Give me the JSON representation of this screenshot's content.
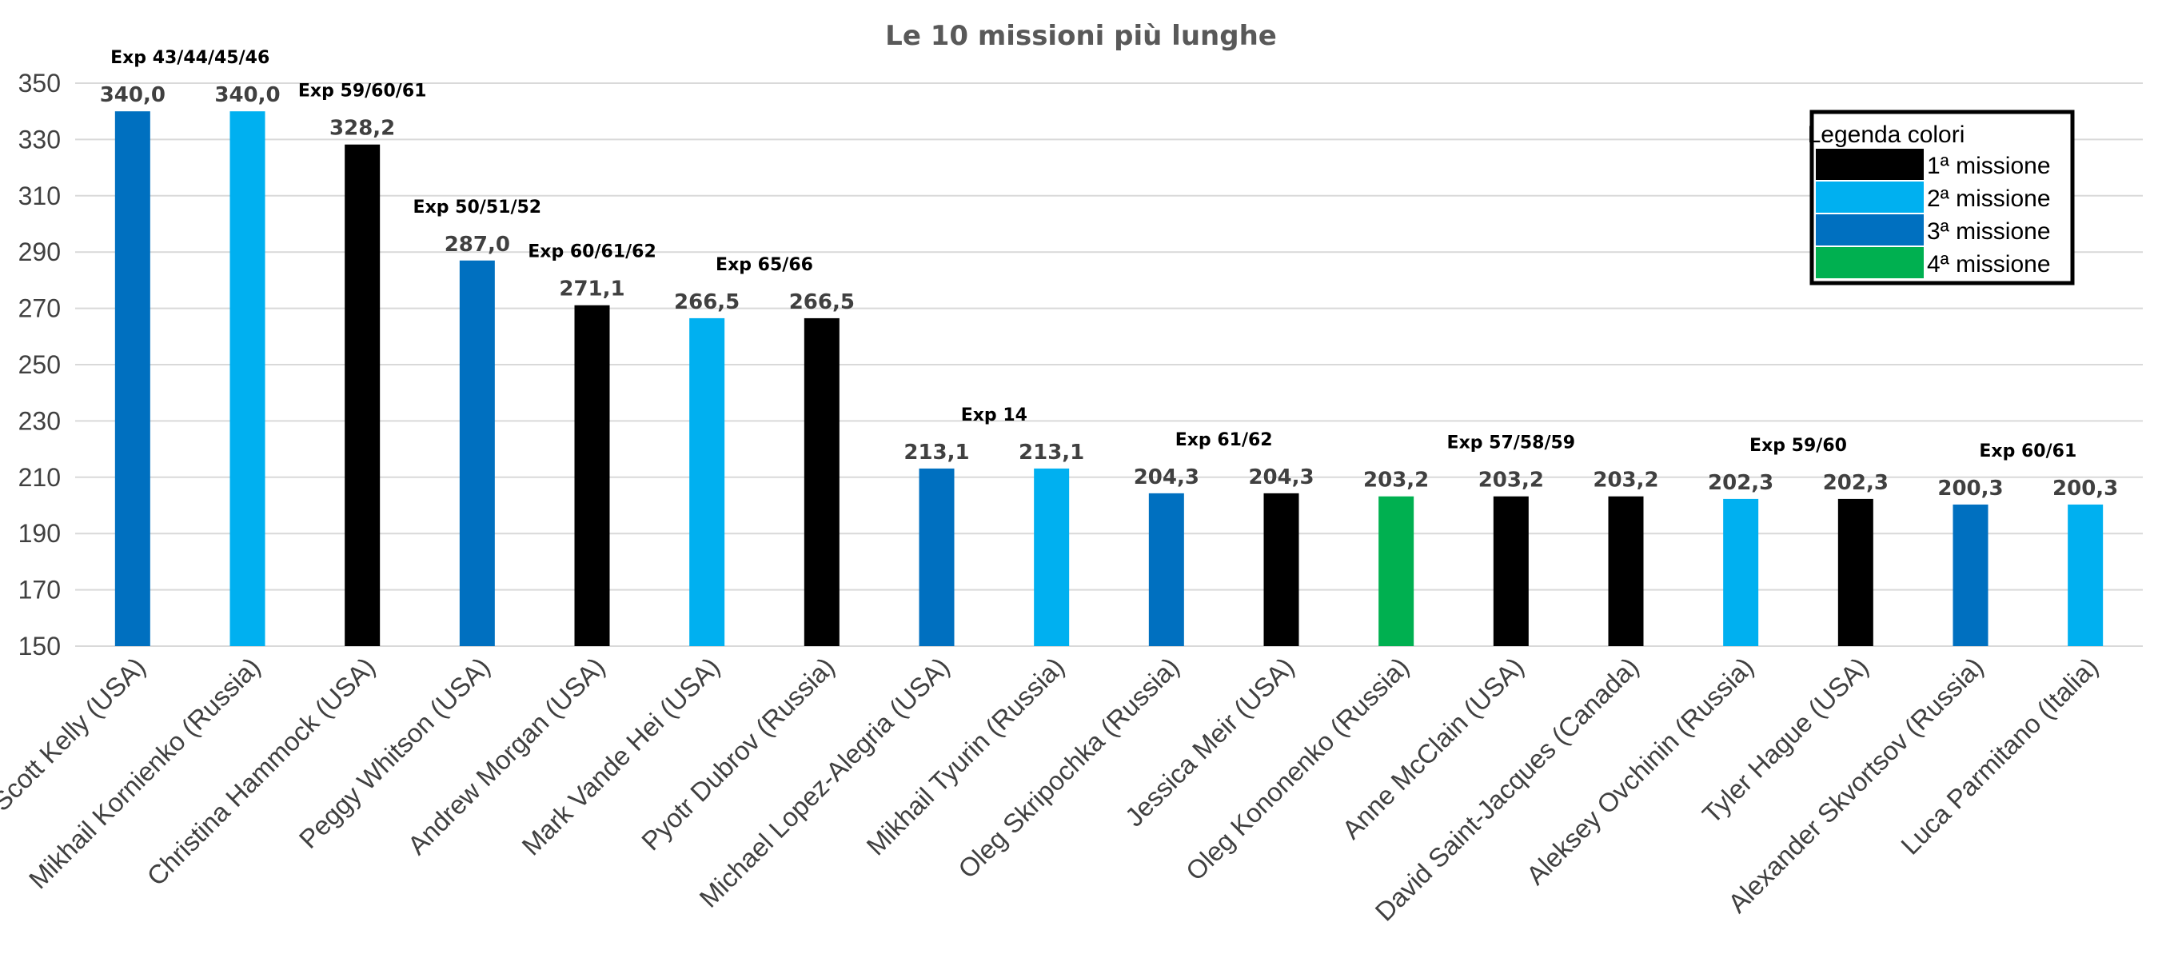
{
  "chart_data": {
    "type": "bar",
    "title": "Le 10 missioni più lunghe",
    "ylim": [
      150,
      350
    ],
    "yticks": [
      "150",
      "170",
      "190",
      "210",
      "230",
      "250",
      "270",
      "290",
      "310",
      "330",
      "350"
    ],
    "grid": true,
    "categories": [
      "Scott Kelly (USA)",
      "Mikhail Kornienko (Russia)",
      "Christina Hammock (USA)",
      "Peggy Whitson (USA)",
      "Andrew Morgan (USA)",
      "Mark Vande Hei (USA)",
      "Pyotr Dubrov (Russia)",
      "Michael Lopez-Alegria (USA)",
      "Mikhail Tyurin (Russia)",
      "Oleg Skripochka (Russia)",
      "Jessica Meir (USA)",
      "Oleg Kononenko (Russia)",
      "Anne McClain (USA)",
      "David Saint-Jacques (Canada)",
      "Aleksey Ovchinin (Russia)",
      "Tyler Hague (USA)",
      "Alexander Skvortsov (Russia)",
      "Luca Parmitano (Italia)"
    ],
    "values": [
      340.0,
      340.0,
      328.2,
      287.0,
      271.1,
      266.5,
      266.5,
      213.1,
      213.1,
      204.3,
      204.3,
      203.2,
      203.2,
      203.2,
      202.3,
      202.3,
      200.3,
      200.3
    ],
    "value_labels": [
      "340,0",
      "340,0",
      "328,2",
      "287,0",
      "271,1",
      "266,5",
      "266,5",
      "213,1",
      "213,1",
      "204,3",
      "204,3",
      "203,2",
      "203,2",
      "203,2",
      "202,3",
      "202,3",
      "200,3",
      "200,3"
    ],
    "mission_number": [
      3,
      2,
      1,
      3,
      1,
      2,
      1,
      3,
      2,
      3,
      1,
      4,
      1,
      1,
      2,
      1,
      3,
      2
    ],
    "expedition_labels": [
      {
        "text": "Exp 43/44/45/46",
        "bars": [
          0,
          1
        ]
      },
      {
        "text": "Exp 59/60/61",
        "bars": [
          2
        ]
      },
      {
        "text": "Exp 50/51/52",
        "bars": [
          3
        ]
      },
      {
        "text": "Exp 60/61/62",
        "bars": [
          4
        ]
      },
      {
        "text": "Exp 65/66",
        "bars": [
          5,
          6
        ]
      },
      {
        "text": "Exp 14",
        "bars": [
          7,
          8
        ]
      },
      {
        "text": "Exp 61/62",
        "bars": [
          9,
          10
        ]
      },
      {
        "text": "Exp 57/58/59",
        "bars": [
          11,
          12,
          13
        ]
      },
      {
        "text": "Exp 59/60",
        "bars": [
          14,
          15
        ]
      },
      {
        "text": "Exp 60/61",
        "bars": [
          16,
          17
        ]
      }
    ],
    "legend": {
      "title": "Legenda colori",
      "placement": "top-right",
      "items": [
        {
          "label": "1ª missione",
          "color": "#000000"
        },
        {
          "label": "2ª missione",
          "color": "#00b0f0"
        },
        {
          "label": "3ª missione",
          "color": "#0070c0"
        },
        {
          "label": "4ª missione",
          "color": "#00b050"
        }
      ]
    }
  },
  "colors": {
    "mission_1": "#000000",
    "mission_2": "#00b0f0",
    "mission_3": "#0070c0",
    "mission_4": "#00b050"
  }
}
